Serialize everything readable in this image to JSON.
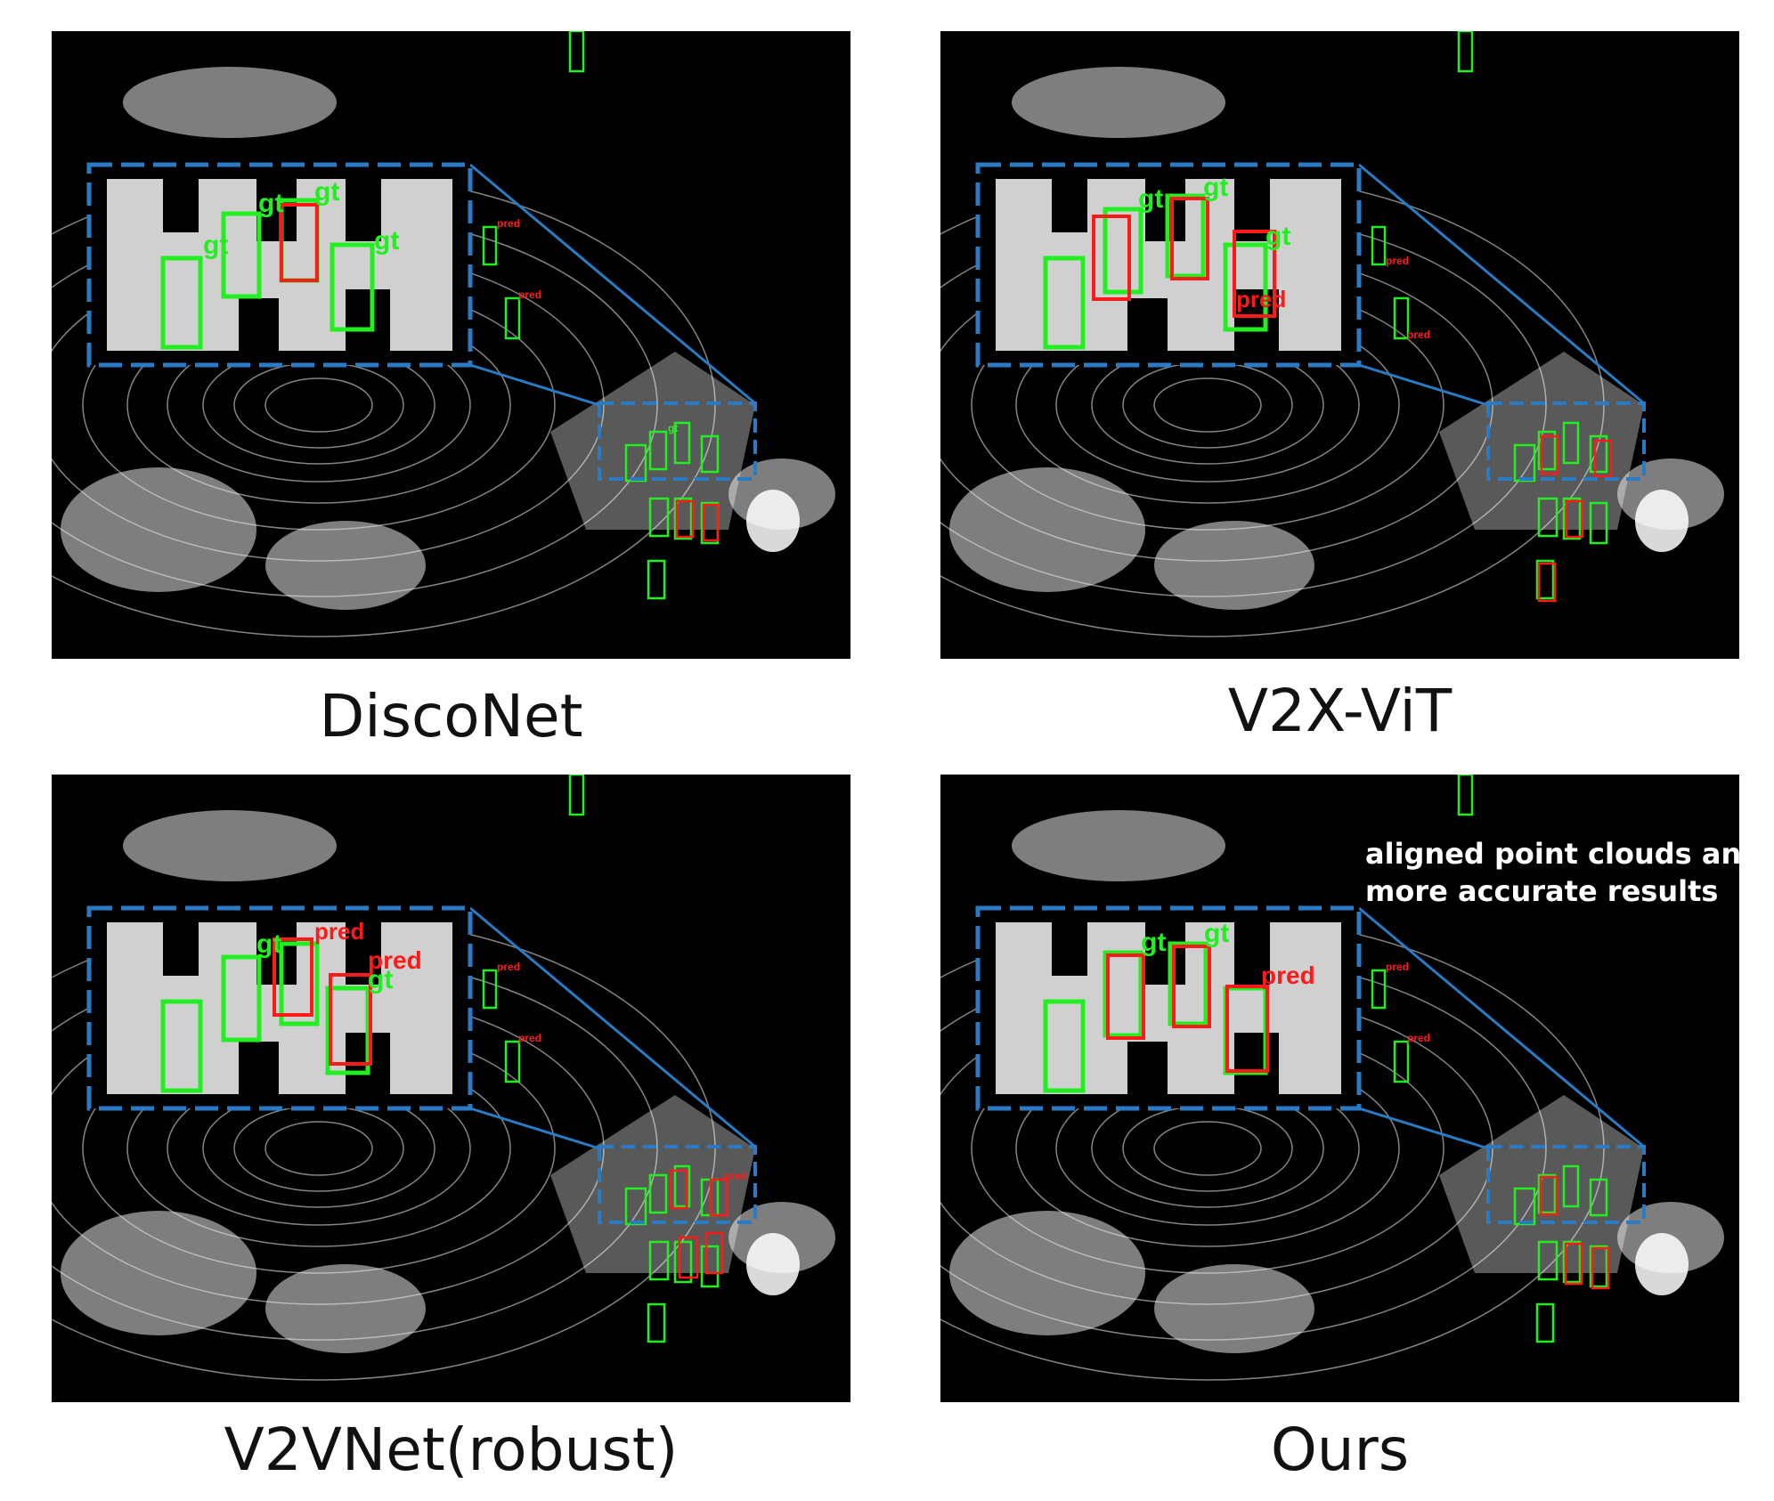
{
  "panels": [
    {
      "id": "disconet",
      "caption": "DiscoNet",
      "annotation": []
    },
    {
      "id": "v2x-vit",
      "caption": "V2X-ViT",
      "annotation": []
    },
    {
      "id": "v2vnet",
      "caption": "V2VNet(robust)",
      "annotation": []
    },
    {
      "id": "ours",
      "caption": "Ours",
      "annotation": [
        "aligned point clouds and",
        "more accurate results"
      ]
    }
  ],
  "box_labels": {
    "ground_truth": "gt",
    "prediction": "pred"
  },
  "colors": {
    "ground_truth": "#22ee22",
    "prediction": "#ff1a1a",
    "zoom_frame": "#2a7bc4",
    "background": "#000000",
    "points": "#ffffff"
  }
}
